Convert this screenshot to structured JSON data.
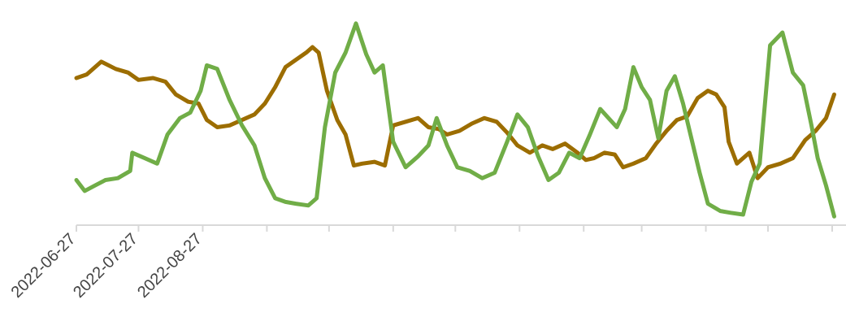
{
  "chart_data": {
    "type": "line",
    "title": "",
    "xlabel": "",
    "ylabel": "",
    "x_axis": {
      "type": "date",
      "start": "2022-06-27",
      "end": "2023-06-27",
      "labeled_ticks": [
        "2022-06-27",
        "2022-07-27",
        "2022-08-27"
      ],
      "unlabeled_ticks": [
        "2022-09-27",
        "2022-10-27",
        "2022-11-27",
        "2022-12-27",
        "2023-01-27",
        "2023-02-27",
        "2023-03-27",
        "2023-04-27",
        "2023-05-27",
        "2023-06-27"
      ]
    },
    "ylim": [
      0,
      100
    ],
    "grid": false,
    "legend": "none",
    "series": [
      {
        "color": "#9c6d00",
        "points": [
          [
            "2022-06-27",
            79
          ],
          [
            "2022-07-02",
            81
          ],
          [
            "2022-07-09",
            88
          ],
          [
            "2022-07-16",
            84
          ],
          [
            "2022-07-22",
            82
          ],
          [
            "2022-07-27",
            78
          ],
          [
            "2022-08-03",
            79
          ],
          [
            "2022-08-09",
            77
          ],
          [
            "2022-08-14",
            70
          ],
          [
            "2022-08-20",
            66
          ],
          [
            "2022-08-25",
            65
          ],
          [
            "2022-08-29",
            56
          ],
          [
            "2022-09-03",
            52
          ],
          [
            "2022-09-09",
            53
          ],
          [
            "2022-09-15",
            56
          ],
          [
            "2022-09-21",
            59
          ],
          [
            "2022-09-26",
            65
          ],
          [
            "2022-10-01",
            74
          ],
          [
            "2022-10-06",
            85
          ],
          [
            "2022-10-11",
            89
          ],
          [
            "2022-10-16",
            93
          ],
          [
            "2022-10-19",
            96
          ],
          [
            "2022-10-22",
            93
          ],
          [
            "2022-10-26",
            72
          ],
          [
            "2022-10-31",
            56
          ],
          [
            "2022-11-04",
            48
          ],
          [
            "2022-11-08",
            31
          ],
          [
            "2022-11-12",
            32
          ],
          [
            "2022-11-18",
            33
          ],
          [
            "2022-11-23",
            31
          ],
          [
            "2022-11-27",
            53
          ],
          [
            "2022-12-03",
            55
          ],
          [
            "2022-12-09",
            57
          ],
          [
            "2022-12-14",
            52
          ],
          [
            "2022-12-19",
            51
          ],
          [
            "2022-12-23",
            48
          ],
          [
            "2022-12-29",
            50
          ],
          [
            "2023-01-04",
            54
          ],
          [
            "2023-01-10",
            57
          ],
          [
            "2023-01-16",
            55
          ],
          [
            "2023-01-21",
            49
          ],
          [
            "2023-01-26",
            42
          ],
          [
            "2023-02-01",
            38
          ],
          [
            "2023-02-07",
            42
          ],
          [
            "2023-02-12",
            40
          ],
          [
            "2023-02-18",
            43
          ],
          [
            "2023-02-24",
            38
          ],
          [
            "2023-02-28",
            34
          ],
          [
            "2023-03-04",
            35
          ],
          [
            "2023-03-09",
            38
          ],
          [
            "2023-03-14",
            37
          ],
          [
            "2023-03-18",
            30
          ],
          [
            "2023-03-23",
            32
          ],
          [
            "2023-03-29",
            35
          ],
          [
            "2023-04-03",
            43
          ],
          [
            "2023-04-08",
            50
          ],
          [
            "2023-04-13",
            56
          ],
          [
            "2023-04-18",
            58
          ],
          [
            "2023-04-23",
            68
          ],
          [
            "2023-04-28",
            72
          ],
          [
            "2023-05-02",
            70
          ],
          [
            "2023-05-06",
            63
          ],
          [
            "2023-05-08",
            44
          ],
          [
            "2023-05-12",
            32
          ],
          [
            "2023-05-18",
            38
          ],
          [
            "2023-05-22",
            24
          ],
          [
            "2023-05-27",
            30
          ],
          [
            "2023-06-02",
            32
          ],
          [
            "2023-06-08",
            35
          ],
          [
            "2023-06-14",
            45
          ],
          [
            "2023-06-19",
            50
          ],
          [
            "2023-06-24",
            57
          ],
          [
            "2023-06-28",
            70
          ]
        ]
      },
      {
        "color": "#70ad47",
        "points": [
          [
            "2022-06-27",
            23
          ],
          [
            "2022-07-01",
            17
          ],
          [
            "2022-07-06",
            20
          ],
          [
            "2022-07-11",
            23
          ],
          [
            "2022-07-17",
            24
          ],
          [
            "2022-07-23",
            28
          ],
          [
            "2022-07-24",
            38
          ],
          [
            "2022-07-30",
            35
          ],
          [
            "2022-08-05",
            32
          ],
          [
            "2022-08-10",
            48
          ],
          [
            "2022-08-16",
            57
          ],
          [
            "2022-08-21",
            60
          ],
          [
            "2022-08-26",
            72
          ],
          [
            "2022-08-29",
            86
          ],
          [
            "2022-09-03",
            84
          ],
          [
            "2022-09-09",
            67
          ],
          [
            "2022-09-15",
            53
          ],
          [
            "2022-09-21",
            42
          ],
          [
            "2022-09-26",
            24
          ],
          [
            "2022-10-01",
            13
          ],
          [
            "2022-10-06",
            11
          ],
          [
            "2022-10-11",
            10
          ],
          [
            "2022-10-17",
            9
          ],
          [
            "2022-10-21",
            13
          ],
          [
            "2022-10-25",
            52
          ],
          [
            "2022-10-30",
            82
          ],
          [
            "2022-11-04",
            93
          ],
          [
            "2022-11-09",
            109
          ],
          [
            "2022-11-14",
            92
          ],
          [
            "2022-11-18",
            82
          ],
          [
            "2022-11-22",
            86
          ],
          [
            "2022-11-27",
            44
          ],
          [
            "2022-12-03",
            30
          ],
          [
            "2022-12-09",
            36
          ],
          [
            "2022-12-14",
            42
          ],
          [
            "2022-12-18",
            57
          ],
          [
            "2022-12-23",
            42
          ],
          [
            "2022-12-28",
            30
          ],
          [
            "2023-01-03",
            28
          ],
          [
            "2023-01-09",
            24
          ],
          [
            "2023-01-15",
            27
          ],
          [
            "2023-01-21",
            44
          ],
          [
            "2023-01-26",
            59
          ],
          [
            "2023-01-31",
            52
          ],
          [
            "2023-02-05",
            36
          ],
          [
            "2023-02-10",
            23
          ],
          [
            "2023-02-15",
            27
          ],
          [
            "2023-02-20",
            38
          ],
          [
            "2023-02-25",
            35
          ],
          [
            "2023-03-02",
            48
          ],
          [
            "2023-03-07",
            62
          ],
          [
            "2023-03-11",
            57
          ],
          [
            "2023-03-15",
            52
          ],
          [
            "2023-03-19",
            62
          ],
          [
            "2023-03-23",
            85
          ],
          [
            "2023-03-27",
            74
          ],
          [
            "2023-03-31",
            67
          ],
          [
            "2023-04-04",
            46
          ],
          [
            "2023-04-08",
            72
          ],
          [
            "2023-04-12",
            80
          ],
          [
            "2023-04-16",
            65
          ],
          [
            "2023-04-20",
            46
          ],
          [
            "2023-04-24",
            27
          ],
          [
            "2023-04-28",
            10
          ],
          [
            "2023-05-04",
            6
          ],
          [
            "2023-05-09",
            5
          ],
          [
            "2023-05-15",
            4
          ],
          [
            "2023-05-19",
            22
          ],
          [
            "2023-05-23",
            32
          ],
          [
            "2023-05-28",
            97
          ],
          [
            "2023-06-03",
            104
          ],
          [
            "2023-06-08",
            82
          ],
          [
            "2023-06-13",
            75
          ],
          [
            "2023-06-17",
            53
          ],
          [
            "2023-06-20",
            35
          ],
          [
            "2023-06-24",
            20
          ],
          [
            "2023-06-28",
            3
          ]
        ]
      }
    ]
  }
}
